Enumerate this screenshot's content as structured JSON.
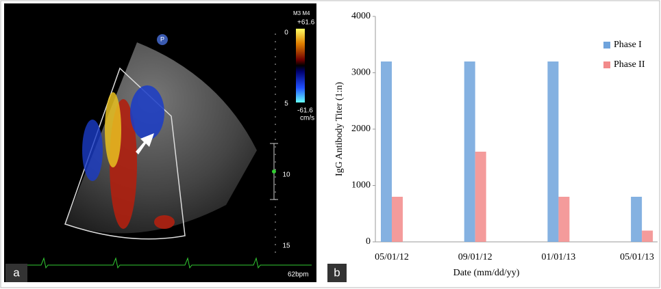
{
  "panel_a": {
    "label": "a",
    "marker": "P",
    "depth_ticks": [
      "0",
      "5",
      "10",
      "15"
    ],
    "probe": "M3 M4",
    "velocity_max": "+61.6",
    "velocity_min": "-61.6",
    "velocity_unit": "cm/s",
    "heart_rate": "62bpm"
  },
  "panel_b_label": "b",
  "chart_data": {
    "type": "bar",
    "x_label": "Date (mm/dd/yy)",
    "y_label": "IgG Antibody Titer (1:n)",
    "categories": [
      "05/01/12",
      "09/01/12",
      "01/01/13",
      "05/01/13"
    ],
    "series": [
      {
        "name": "Phase I",
        "color": "#6fa3dc",
        "values": [
          3200,
          3200,
          3200,
          800
        ]
      },
      {
        "name": "Phase II",
        "color": "#f28a8a",
        "values": [
          800,
          1600,
          800,
          200
        ]
      }
    ],
    "ylim": [
      0,
      4000
    ],
    "yticks": [
      0,
      1000,
      2000,
      3000,
      4000
    ],
    "grid": false,
    "legend": "top-right"
  }
}
